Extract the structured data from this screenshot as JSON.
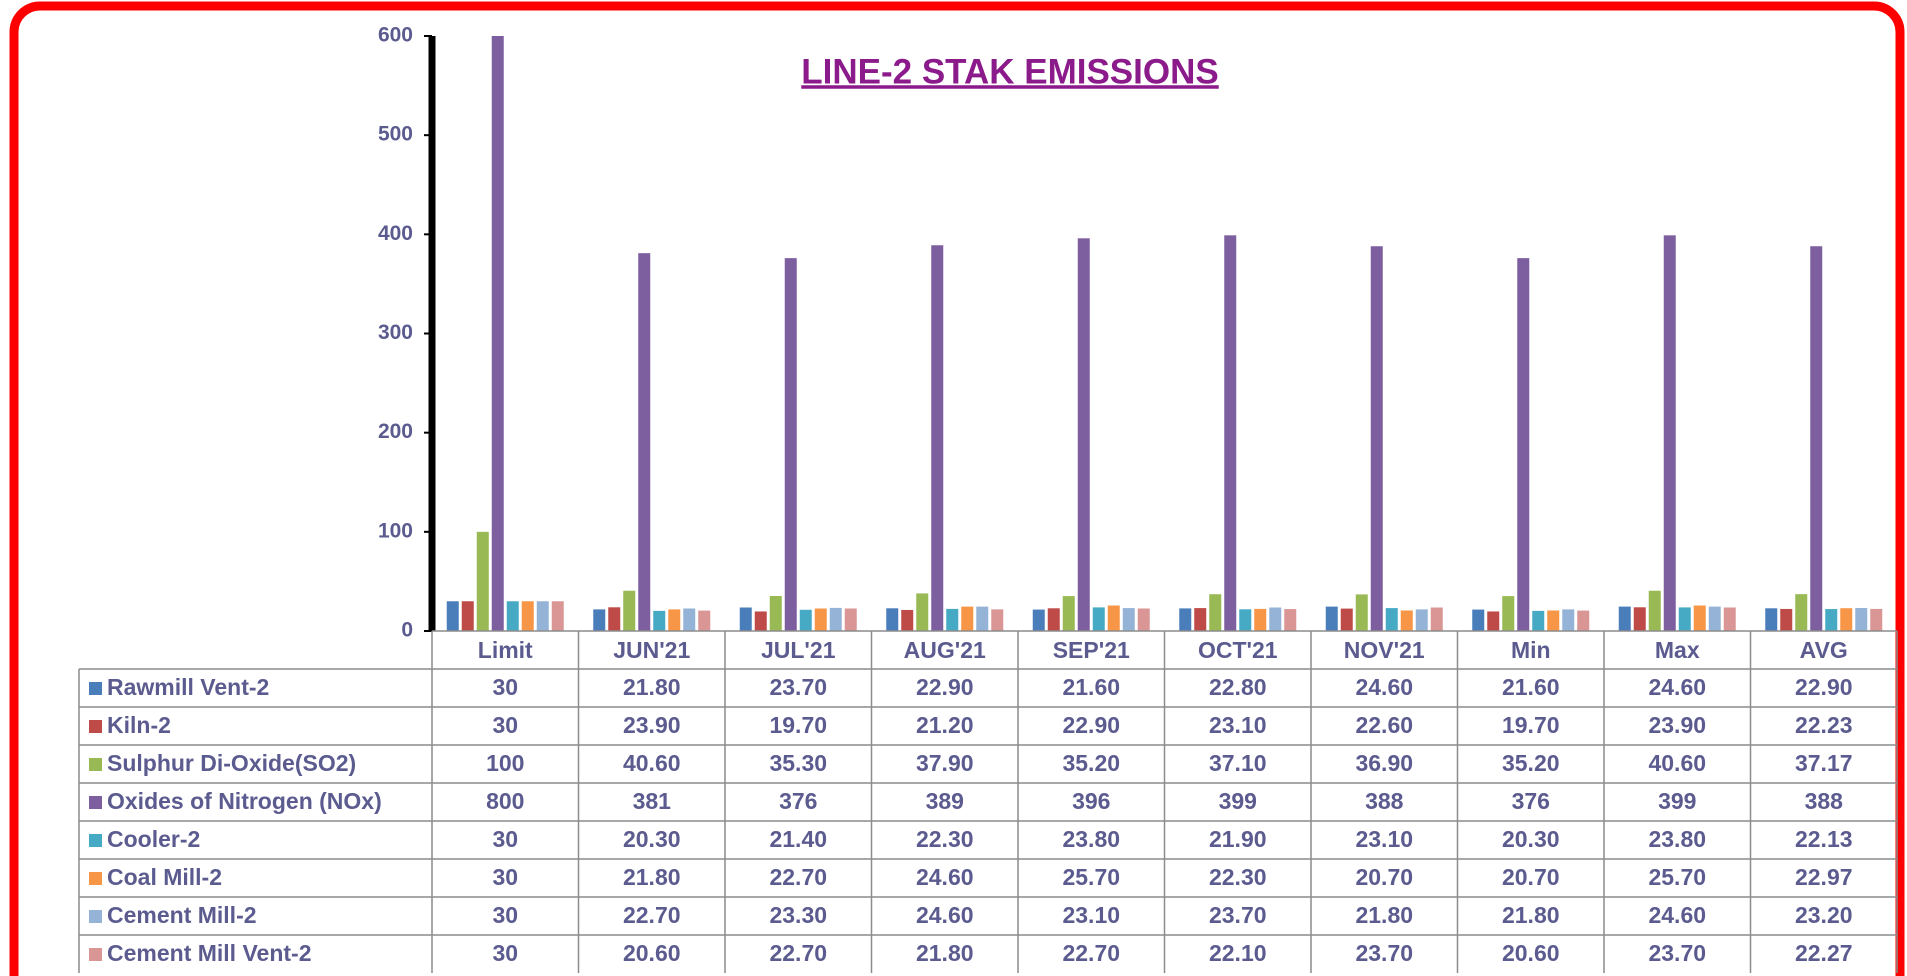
{
  "chart_data": {
    "type": "bar",
    "title": "LINE-2 STAK EMISSIONS",
    "categories": [
      "Limit",
      "JUN'21",
      "JUL'21",
      "AUG'21",
      "SEP'21",
      "OCT'21",
      "NOV'21",
      "Min",
      "Max",
      "AVG"
    ],
    "ylim": [
      0,
      600
    ],
    "yticks": [
      0,
      100,
      200,
      300,
      400,
      500,
      600
    ],
    "grid": false,
    "series": [
      {
        "name": "Rawmill Vent-2",
        "color": "#4a7ebb",
        "values": [
          30,
          21.8,
          23.7,
          22.9,
          21.6,
          22.8,
          24.6,
          21.6,
          24.6,
          22.9
        ],
        "value_labels": [
          "30",
          "21.80",
          "23.70",
          "22.90",
          "21.60",
          "22.80",
          "24.60",
          "21.60",
          "24.60",
          "22.90"
        ]
      },
      {
        "name": "Kiln-2",
        "color": "#be4b48",
        "values": [
          30,
          23.9,
          19.7,
          21.2,
          22.9,
          23.1,
          22.6,
          19.7,
          23.9,
          22.23
        ],
        "value_labels": [
          "30",
          "23.90",
          "19.70",
          "21.20",
          "22.90",
          "23.10",
          "22.60",
          "19.70",
          "23.90",
          "22.23"
        ]
      },
      {
        "name": "Sulphur Di-Oxide(SO2)",
        "color": "#98b954",
        "values": [
          100,
          40.6,
          35.3,
          37.9,
          35.2,
          37.1,
          36.9,
          35.2,
          40.6,
          37.17
        ],
        "value_labels": [
          "100",
          "40.60",
          "35.30",
          "37.90",
          "35.20",
          "37.10",
          "36.90",
          "35.20",
          "40.60",
          "37.17"
        ]
      },
      {
        "name": "Oxides of Nitrogen (NOx)",
        "color": "#7d5fa0",
        "values": [
          800,
          381,
          376,
          389,
          396,
          399,
          388,
          376,
          399,
          388
        ],
        "value_labels": [
          "800",
          "381",
          "376",
          "389",
          "396",
          "399",
          "388",
          "376",
          "399",
          "388"
        ]
      },
      {
        "name": "Cooler-2",
        "color": "#46aac5",
        "values": [
          30,
          20.3,
          21.4,
          22.3,
          23.8,
          21.9,
          23.1,
          20.3,
          23.8,
          22.13
        ],
        "value_labels": [
          "30",
          "20.30",
          "21.40",
          "22.30",
          "23.80",
          "21.90",
          "23.10",
          "20.30",
          "23.80",
          "22.13"
        ]
      },
      {
        "name": "Coal Mill-2",
        "color": "#f79646",
        "values": [
          30,
          21.8,
          22.7,
          24.6,
          25.7,
          22.3,
          20.7,
          20.7,
          25.7,
          22.97
        ],
        "value_labels": [
          "30",
          "21.80",
          "22.70",
          "24.60",
          "25.70",
          "22.30",
          "20.70",
          "20.70",
          "25.70",
          "22.97"
        ]
      },
      {
        "name": "Cement Mill-2",
        "color": "#95b3d7",
        "values": [
          30,
          22.7,
          23.3,
          24.6,
          23.1,
          23.7,
          21.8,
          21.8,
          24.6,
          23.2
        ],
        "value_labels": [
          "30",
          "22.70",
          "23.30",
          "24.60",
          "23.10",
          "23.70",
          "21.80",
          "21.80",
          "24.60",
          "23.20"
        ]
      },
      {
        "name": "Cement Mill Vent-2",
        "color": "#d99694",
        "values": [
          30,
          20.6,
          22.7,
          21.8,
          22.7,
          22.1,
          23.7,
          20.6,
          23.7,
          22.27
        ],
        "value_labels": [
          "30",
          "20.60",
          "22.70",
          "21.80",
          "22.70",
          "22.10",
          "23.70",
          "20.60",
          "23.70",
          "22.27"
        ]
      }
    ]
  }
}
